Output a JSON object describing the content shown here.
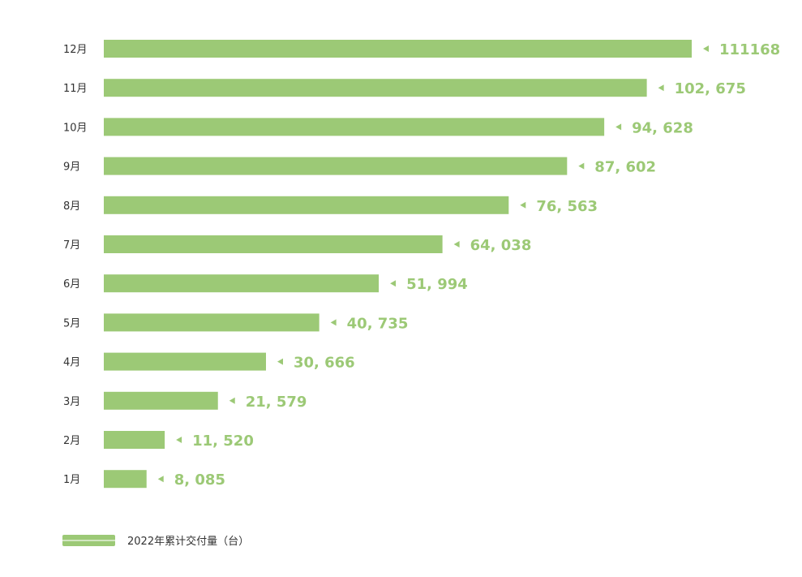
{
  "colors": {
    "bar": "#9cc976",
    "value_text": "#9cc976",
    "category_text": "#333333",
    "legend_text": "#333333"
  },
  "legend": {
    "label": "2022年累计交付量（台）"
  },
  "chart_data": {
    "type": "bar",
    "orientation": "horizontal",
    "categories": [
      "12月",
      "11月",
      "10月",
      "9月",
      "8月",
      "7月",
      "6月",
      "5月",
      "4月",
      "3月",
      "2月",
      "1月"
    ],
    "values": [
      111168,
      102675,
      94628,
      87602,
      76563,
      64038,
      51994,
      40735,
      30666,
      21579,
      11520,
      8085
    ],
    "value_labels": [
      "111168",
      "102, 675",
      "94, 628",
      "87, 602",
      "76, 563",
      "64, 038",
      "51, 994",
      "40, 735",
      "30, 666",
      "21, 579",
      "11, 520",
      "8, 085"
    ],
    "series": [
      {
        "name": "2022年累计交付量（台）",
        "values": [
          111168,
          102675,
          94628,
          87602,
          76563,
          64038,
          51994,
          40735,
          30666,
          21579,
          11520,
          8085
        ]
      }
    ],
    "title": "",
    "xlabel": "",
    "ylabel": "",
    "grid": false,
    "legend_position": "bottom-left"
  }
}
